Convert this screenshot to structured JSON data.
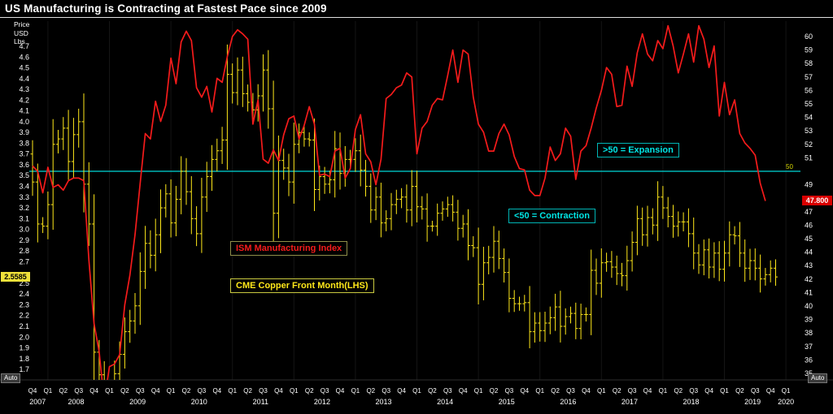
{
  "title": "US Manufacturing is Contracting at Fastest Pace since 2009",
  "left_axis": {
    "unit_lines": [
      "Price",
      "USD",
      "Lbs"
    ],
    "min": 1.7,
    "max": 4.7,
    "step": 0.1,
    "skip": [
      2.6
    ],
    "last_value_label": "2.5585"
  },
  "right_axis": {
    "min": 35,
    "max": 60,
    "step": 1,
    "skip": [
      50,
      48
    ],
    "last_value_label": "47.800"
  },
  "reference_line": {
    "axis": "right",
    "value": 50,
    "label": "50"
  },
  "annotations": [
    {
      "text": ">50 = Expansion",
      "color": "#00e5e5"
    },
    {
      "text": "<50 = Contraction",
      "color": "#00e5e5"
    },
    {
      "text": "ISM Manufacturing Index",
      "color": "#f51b1b"
    },
    {
      "text": "CME Copper Front Month(LHS)",
      "color": "#ffe81a"
    }
  ],
  "misc": {
    "auto_label": "Auto"
  },
  "colors": {
    "copper": "#ffe81a",
    "ism": "#f51b1b",
    "reference": "#00d8d8",
    "reference_label": "#d6d600",
    "axis_text": "#ffffff",
    "badge_left_bg": "#f0e13a",
    "badge_right_bg": "#d90000"
  },
  "chart_data": {
    "type": "mixed",
    "title": "US Manufacturing is Contracting at Fastest Pace since 2009",
    "x_axis": {
      "frequency": "monthly",
      "start": "2007-10",
      "end": "2020-01",
      "quarter_cycle": [
        "Q4",
        "Q1",
        "Q2",
        "Q3"
      ],
      "first_quarter_label": "Q4 2007",
      "last_quarter_label": "Q1 2020",
      "year_labels": [
        "2007",
        "2008",
        "2009",
        "2010",
        "2011",
        "2012",
        "2013",
        "2014",
        "2015",
        "2016",
        "2017",
        "2018",
        "2019",
        "2020"
      ]
    },
    "left_ylim": [
      1.7,
      4.7
    ],
    "right_ylim": [
      35,
      60
    ],
    "grid": "off",
    "reference_line": {
      "axis": "right",
      "value": 50
    },
    "legend_notes": [
      ">50 = Expansion",
      "<50 = Contraction"
    ],
    "series": [
      {
        "name": "ISM Manufacturing Index",
        "type": "line",
        "axis": "right",
        "color": "#f51b1b",
        "start": "2007-10",
        "end": "2019-09",
        "last": 47.8,
        "values": [
          50.4,
          50.0,
          48.4,
          50.3,
          48.8,
          49.0,
          48.6,
          49.3,
          49.5,
          49.5,
          49.3,
          43.4,
          38.7,
          36.6,
          32.9,
          35.5,
          35.7,
          36.4,
          40.1,
          42.3,
          45.3,
          49.1,
          52.8,
          52.4,
          55.2,
          53.7,
          54.9,
          58.4,
          56.5,
          59.6,
          60.4,
          59.7,
          56.2,
          55.5,
          56.3,
          54.4,
          56.9,
          56.6,
          58.5,
          60.0,
          60.5,
          60.2,
          59.8,
          53.5,
          55.3,
          50.9,
          50.6,
          51.6,
          50.8,
          52.7,
          53.9,
          54.1,
          52.4,
          53.4,
          54.8,
          53.5,
          49.7,
          49.8,
          49.6,
          51.5,
          51.7,
          49.5,
          50.2,
          53.1,
          54.2,
          51.3,
          50.7,
          49.0,
          50.9,
          55.4,
          55.7,
          56.2,
          56.4,
          57.3,
          57.0,
          51.3,
          53.2,
          53.7,
          54.9,
          55.4,
          55.3,
          57.1,
          59.0,
          56.6,
          59.0,
          58.7,
          55.5,
          53.5,
          52.9,
          51.5,
          51.5,
          52.8,
          53.5,
          52.7,
          51.1,
          50.2,
          50.1,
          48.6,
          48.2,
          48.2,
          49.5,
          51.8,
          50.8,
          51.3,
          53.2,
          52.6,
          49.4,
          51.5,
          51.9,
          53.2,
          54.7,
          56.0,
          57.7,
          57.2,
          54.8,
          54.9,
          57.8,
          56.3,
          58.8,
          60.2,
          58.7,
          58.2,
          59.7,
          59.1,
          60.8,
          59.3,
          57.3,
          58.7,
          60.2,
          58.1,
          60.8,
          59.8,
          57.7,
          59.3,
          54.1,
          56.6,
          54.2,
          55.3,
          52.8,
          52.1,
          51.7,
          51.2,
          49.1,
          47.8
        ]
      },
      {
        "name": "CME Copper Front Month (LHS)",
        "type": "ohlc_bar",
        "axis": "left",
        "color": "#ffe81a",
        "start": "2007-10",
        "end": "2019-11",
        "last": 2.5585,
        "closes": [
          3.44,
          3.05,
          3.03,
          3.23,
          3.79,
          3.84,
          3.94,
          3.63,
          3.88,
          4.0,
          3.42,
          3.05,
          1.86,
          1.65,
          1.41,
          1.46,
          1.66,
          1.84,
          2.05,
          2.15,
          2.29,
          2.61,
          2.87,
          2.76,
          2.95,
          3.2,
          3.33,
          3.06,
          3.28,
          3.54,
          3.35,
          3.1,
          2.96,
          3.3,
          3.49,
          3.65,
          3.73,
          3.83,
          4.44,
          4.27,
          4.48,
          4.26,
          4.18,
          4.11,
          4.24,
          4.48,
          4.12,
          3.15,
          3.64,
          3.57,
          3.44,
          3.79,
          3.9,
          3.84,
          3.83,
          3.37,
          3.49,
          3.42,
          3.46,
          3.75,
          3.52,
          3.65,
          3.65,
          3.73,
          3.55,
          3.4,
          3.18,
          3.3,
          3.06,
          3.1,
          3.23,
          3.28,
          3.3,
          3.18,
          3.4,
          3.21,
          3.19,
          3.03,
          3.03,
          3.15,
          3.19,
          3.23,
          3.16,
          3.01,
          3.05,
          2.85,
          2.83,
          2.49,
          2.69,
          2.74,
          2.89,
          2.73,
          2.6,
          2.36,
          2.31,
          2.31,
          2.32,
          2.05,
          2.13,
          2.06,
          2.13,
          2.18,
          2.28,
          2.1,
          2.19,
          2.22,
          2.08,
          2.21,
          2.21,
          2.62,
          2.5,
          2.69,
          2.7,
          2.65,
          2.59,
          2.57,
          2.71,
          2.88,
          3.1,
          2.95,
          3.11,
          3.04,
          3.3,
          3.2,
          3.12,
          3.03,
          3.07,
          3.07,
          2.96,
          2.78,
          2.67,
          2.81,
          2.65,
          2.78,
          2.63,
          2.78,
          2.95,
          2.94,
          2.78,
          2.64,
          2.71,
          2.64,
          2.54,
          2.58,
          2.64,
          2.5585
        ]
      }
    ]
  }
}
